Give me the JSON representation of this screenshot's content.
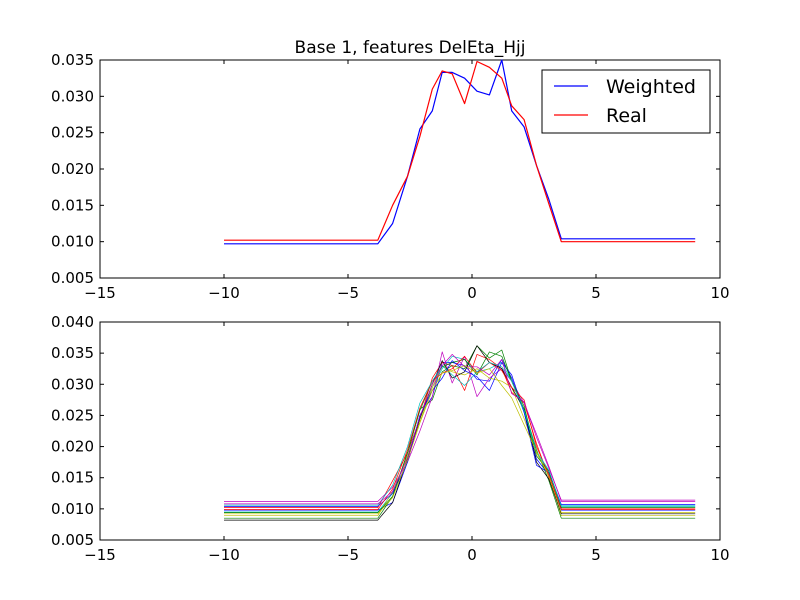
{
  "chart_data": [
    {
      "type": "line",
      "title": "Base 1, features DelEta_Hjj",
      "xlabel": "",
      "ylabel": "",
      "xlim": [
        -15,
        10
      ],
      "ylim": [
        0.005,
        0.035
      ],
      "x_ticks": [
        "−15",
        "−10",
        "−5",
        "0",
        "5",
        "10"
      ],
      "y_ticks": [
        "0.005",
        "0.010",
        "0.015",
        "0.020",
        "0.025",
        "0.030",
        "0.035"
      ],
      "grid": false,
      "legend_position": "top-right",
      "series": [
        {
          "name": "Weighted",
          "color": "#0000ff",
          "x": [
            -10,
            -3.8,
            -3.2,
            -2.6,
            -2.1,
            -1.6,
            -1.2,
            -0.8,
            -0.3,
            0.2,
            0.7,
            1.2,
            1.6,
            2.1,
            2.6,
            3.1,
            3.6,
            9
          ],
          "y": [
            0.0097,
            0.0097,
            0.0125,
            0.019,
            0.0255,
            0.028,
            0.0333,
            0.0333,
            0.0325,
            0.0307,
            0.0302,
            0.035,
            0.028,
            0.0258,
            0.0205,
            0.0158,
            0.0104,
            0.0104
          ]
        },
        {
          "name": "Real",
          "color": "#ff0000",
          "x": [
            -10,
            -3.8,
            -3.2,
            -2.6,
            -2.1,
            -1.6,
            -1.2,
            -0.8,
            -0.3,
            0.2,
            0.7,
            1.2,
            1.6,
            2.1,
            2.6,
            3.1,
            3.6,
            9
          ],
          "y": [
            0.0102,
            0.0102,
            0.015,
            0.019,
            0.0245,
            0.031,
            0.0335,
            0.0331,
            0.029,
            0.0348,
            0.034,
            0.0325,
            0.0287,
            0.0268,
            0.0205,
            0.0152,
            0.01,
            0.01
          ]
        }
      ]
    },
    {
      "type": "line",
      "title": "",
      "xlabel": "",
      "ylabel": "",
      "xlim": [
        -15,
        10
      ],
      "ylim": [
        0.005,
        0.04
      ],
      "x_ticks": [
        "−15",
        "−10",
        "−5",
        "0",
        "5",
        "10"
      ],
      "y_ticks": [
        "0.005",
        "0.010",
        "0.015",
        "0.020",
        "0.025",
        "0.030",
        "0.035",
        "0.040"
      ],
      "grid": false,
      "x": [
        -10,
        -3.8,
        -3.2,
        -2.6,
        -2.1,
        -1.6,
        -1.2,
        -0.8,
        -0.3,
        0.2,
        0.7,
        1.2,
        1.6,
        2.1,
        2.6,
        3.1,
        3.6,
        9
      ],
      "series": [
        {
          "color": "#0000ff",
          "y": [
            0.0098,
            0.0098,
            0.011,
            0.0175,
            0.025,
            0.028,
            0.0335,
            0.0335,
            0.033,
            0.0308,
            0.0305,
            0.034,
            0.031,
            0.0255,
            0.018,
            0.0155,
            0.0098,
            0.0098
          ]
        },
        {
          "color": "#008000",
          "y": [
            0.0085,
            0.0085,
            0.012,
            0.019,
            0.026,
            0.0275,
            0.032,
            0.033,
            0.0325,
            0.0362,
            0.0342,
            0.0355,
            0.0305,
            0.026,
            0.0195,
            0.0145,
            0.0085,
            0.0085
          ]
        },
        {
          "color": "#ff0000",
          "y": [
            0.0102,
            0.0102,
            0.0145,
            0.019,
            0.0245,
            0.031,
            0.0335,
            0.033,
            0.029,
            0.0348,
            0.034,
            0.0325,
            0.0287,
            0.027,
            0.0205,
            0.015,
            0.0101,
            0.0101
          ]
        },
        {
          "color": "#00bfbf",
          "y": [
            0.0095,
            0.0095,
            0.0125,
            0.0185,
            0.0245,
            0.0295,
            0.0325,
            0.0345,
            0.034,
            0.032,
            0.0325,
            0.0335,
            0.0305,
            0.0255,
            0.019,
            0.016,
            0.0105,
            0.0105
          ]
        },
        {
          "color": "#bf00bf",
          "y": [
            0.0112,
            0.0112,
            0.0135,
            0.0175,
            0.0225,
            0.028,
            0.0352,
            0.0302,
            0.0345,
            0.028,
            0.031,
            0.0325,
            0.0305,
            0.027,
            0.022,
            0.0168,
            0.0112,
            0.0112
          ]
        },
        {
          "color": "#bfbf00",
          "y": [
            0.0089,
            0.0089,
            0.0128,
            0.0185,
            0.024,
            0.0295,
            0.033,
            0.032,
            0.0315,
            0.0325,
            0.031,
            0.0305,
            0.0295,
            0.0245,
            0.019,
            0.0155,
            0.0089,
            0.0089
          ]
        },
        {
          "color": "#000000",
          "y": [
            0.0082,
            0.0082,
            0.011,
            0.018,
            0.0245,
            0.03,
            0.0338,
            0.031,
            0.032,
            0.0362,
            0.0335,
            0.0325,
            0.0295,
            0.026,
            0.0175,
            0.0148,
            0.0092,
            0.0092
          ]
        },
        {
          "color": "#0000ff",
          "y": [
            0.0104,
            0.0104,
            0.0125,
            0.0175,
            0.025,
            0.029,
            0.031,
            0.0338,
            0.0322,
            0.0312,
            0.029,
            0.0335,
            0.0315,
            0.0255,
            0.017,
            0.0158,
            0.0107,
            0.0107
          ]
        },
        {
          "color": "#008000",
          "y": [
            0.0094,
            0.0094,
            0.012,
            0.019,
            0.0258,
            0.0305,
            0.0328,
            0.0335,
            0.034,
            0.0315,
            0.0352,
            0.0345,
            0.0305,
            0.0265,
            0.0185,
            0.016,
            0.0102,
            0.0102
          ]
        },
        {
          "color": "#ff0000",
          "y": [
            0.0099,
            0.0099,
            0.0132,
            0.0195,
            0.0262,
            0.0305,
            0.0318,
            0.0325,
            0.0345,
            0.0318,
            0.0335,
            0.0322,
            0.0295,
            0.0275,
            0.02,
            0.0155,
            0.0099,
            0.0099
          ]
        },
        {
          "color": "#00bfbf",
          "y": [
            0.0106,
            0.0106,
            0.0138,
            0.02,
            0.027,
            0.0305,
            0.033,
            0.0315,
            0.0298,
            0.032,
            0.0335,
            0.0328,
            0.0305,
            0.0258,
            0.0192,
            0.0162,
            0.0104,
            0.0104
          ]
        },
        {
          "color": "#bf00bf",
          "y": [
            0.0108,
            0.0108,
            0.0128,
            0.0182,
            0.0248,
            0.03,
            0.033,
            0.0348,
            0.0328,
            0.0328,
            0.0315,
            0.034,
            0.0285,
            0.0272,
            0.0215,
            0.0165,
            0.0114,
            0.0114
          ]
        },
        {
          "color": "#bfbf00",
          "y": [
            0.0092,
            0.0092,
            0.0118,
            0.0178,
            0.0238,
            0.029,
            0.0318,
            0.0322,
            0.033,
            0.0318,
            0.0325,
            0.0298,
            0.0278,
            0.0235,
            0.0192,
            0.0152,
            0.0094,
            0.0094
          ]
        }
      ]
    }
  ]
}
